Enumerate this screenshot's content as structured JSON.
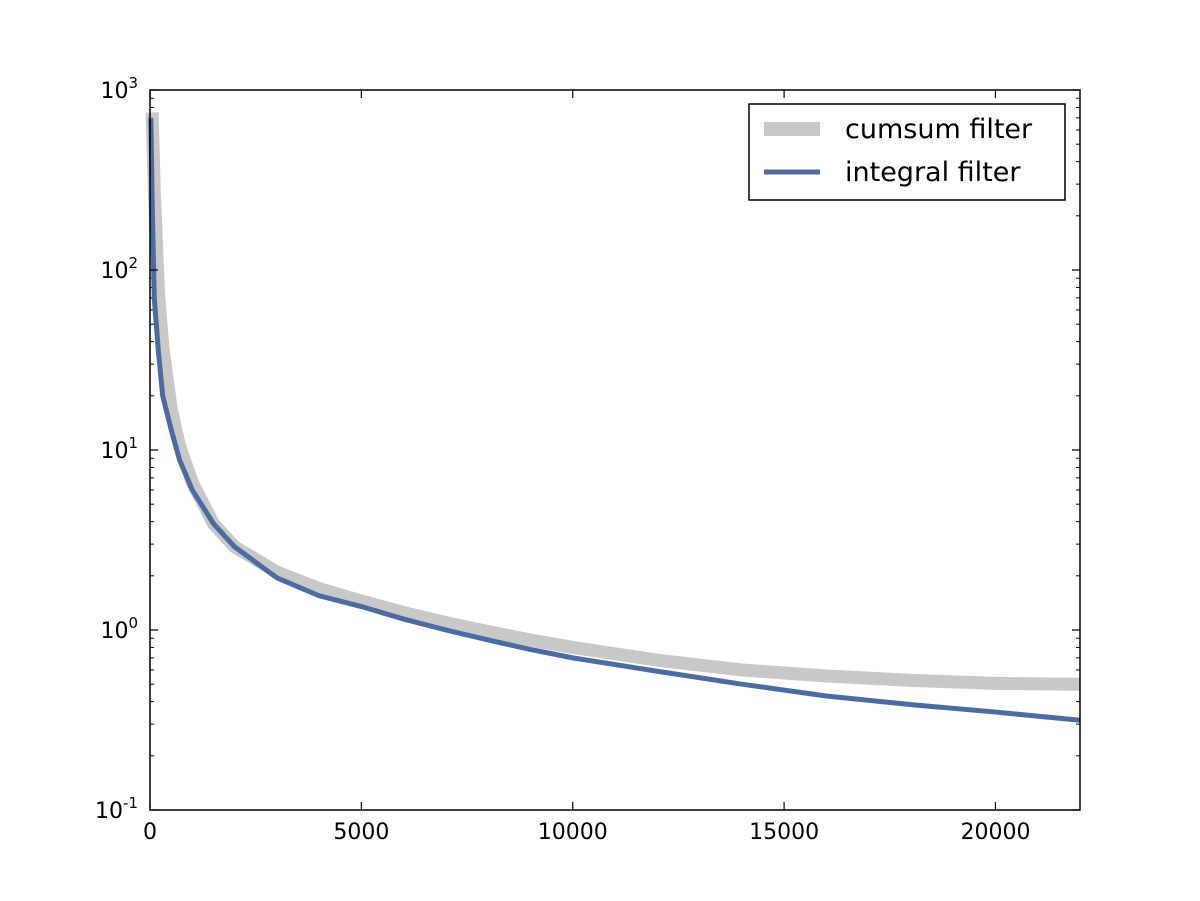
{
  "chart_data": {
    "type": "line",
    "title": "",
    "xlabel": "",
    "ylabel": "",
    "xlim": [
      0,
      22000
    ],
    "ylim": [
      0.1,
      1000
    ],
    "yscale": "log",
    "grid": false,
    "legend_position": "top-right",
    "x_ticks": [
      "0",
      "5000",
      "10000",
      "15000",
      "20000"
    ],
    "y_ticks": [
      {
        "value": 0.1,
        "base": "10",
        "exp": "-1"
      },
      {
        "value": 1,
        "base": "10",
        "exp": "0"
      },
      {
        "value": 10,
        "base": "10",
        "exp": "1"
      },
      {
        "value": 100,
        "base": "10",
        "exp": "2"
      },
      {
        "value": 1000,
        "base": "10",
        "exp": "3"
      }
    ],
    "series": [
      {
        "name": "cumsum filter",
        "color": "#c8c8c8",
        "line_style": "thick",
        "x": [
          50,
          100,
          200,
          300,
          500,
          700,
          1000,
          1500,
          2000,
          3000,
          4000,
          5000,
          6000,
          7000,
          8000,
          9000,
          10000,
          12000,
          14000,
          16000,
          18000,
          20000,
          22000
        ],
        "y": [
          750,
          280,
          75,
          38,
          17,
          10.5,
          6.6,
          3.9,
          2.9,
          2.1,
          1.7,
          1.45,
          1.25,
          1.1,
          0.98,
          0.88,
          0.8,
          0.68,
          0.6,
          0.555,
          0.525,
          0.505,
          0.5
        ]
      },
      {
        "name": "integral filter",
        "color": "#4c6ba1",
        "line_style": "normal",
        "x": [
          20,
          50,
          100,
          200,
          300,
          500,
          700,
          1000,
          1500,
          2000,
          3000,
          4000,
          5000,
          6000,
          7000,
          8000,
          9000,
          10000,
          12000,
          14000,
          16000,
          18000,
          20000,
          22000
        ],
        "y": [
          700,
          250,
          70,
          35,
          20,
          13,
          8.8,
          6.0,
          3.9,
          2.9,
          1.95,
          1.55,
          1.35,
          1.15,
          1.0,
          0.88,
          0.78,
          0.7,
          0.59,
          0.5,
          0.43,
          0.385,
          0.35,
          0.315
        ]
      }
    ]
  }
}
